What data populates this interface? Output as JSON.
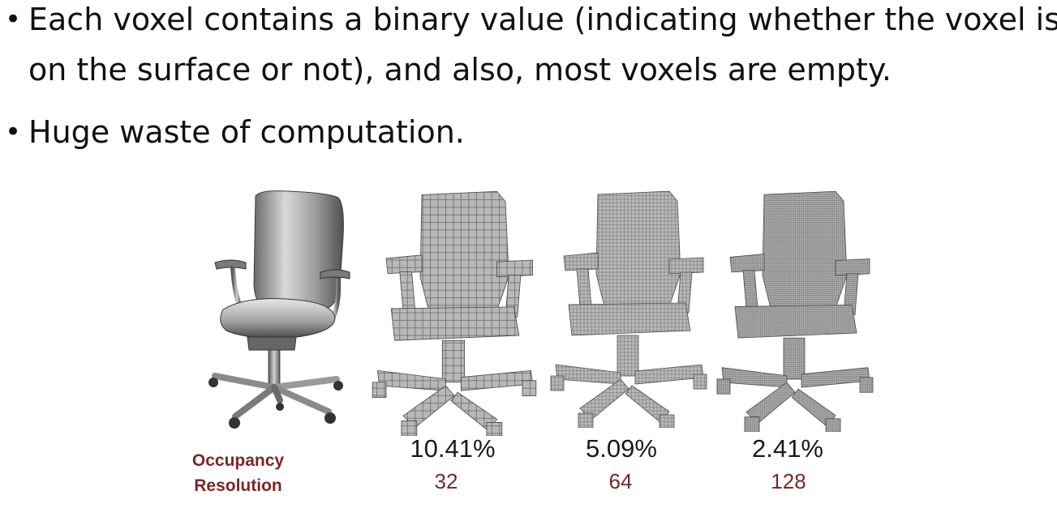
{
  "bullets": [
    {
      "line1": "Each voxel contains a binary value (indicating whether the voxel is",
      "line2": "on the surface or not), and also, most voxels are empty."
    },
    {
      "line1": "Huge waste of computation."
    }
  ],
  "figure": {
    "labels": {
      "occupancy": "Occupancy",
      "resolution": "Resolution"
    },
    "columns": [
      {
        "occupancy": "10.41%",
        "resolution": "32"
      },
      {
        "occupancy": "5.09%",
        "resolution": "64"
      },
      {
        "occupancy": "2.41%",
        "resolution": "128"
      }
    ],
    "colors": {
      "accent": "#7a2828",
      "voxel_face": "#b8b8b8",
      "voxel_line": "#6e6e6e"
    }
  }
}
